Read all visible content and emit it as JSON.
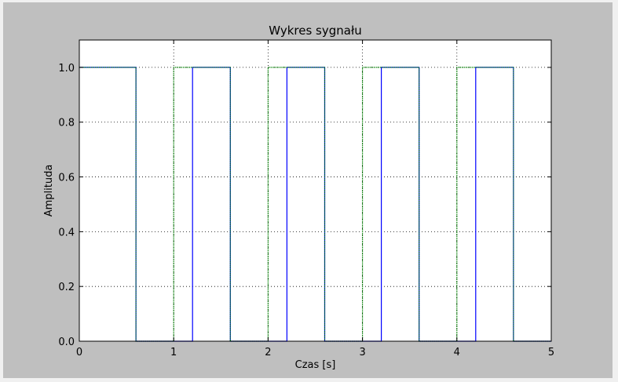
{
  "colors": {
    "figure_bg": "#bfbfbf",
    "axes_bg": "#ffffff",
    "grid": "#000000"
  },
  "chart_data": {
    "type": "line",
    "title": "Wykres sygnału",
    "xlabel": "Czas [s]",
    "ylabel": "Amplituda",
    "xlim": [
      0,
      5
    ],
    "ylim": [
      0,
      1.1
    ],
    "x_ticks": [
      0,
      1,
      2,
      3,
      4,
      5
    ],
    "x_tick_labels": [
      "0",
      "1",
      "2",
      "3",
      "4",
      "5"
    ],
    "y_ticks": [
      0.0,
      0.2,
      0.4,
      0.6,
      0.8,
      1.0
    ],
    "y_tick_labels": [
      "0.0",
      "0.2",
      "0.4",
      "0.6",
      "0.8",
      "1.0"
    ],
    "grid": true,
    "grid_style": "dotted",
    "step": true,
    "series": [
      {
        "color": "#0000ff",
        "x": [
          0,
          0.6,
          0.6,
          1.2,
          1.2,
          1.6,
          1.6,
          2.2,
          2.2,
          2.6,
          2.6,
          3.2,
          3.2,
          3.6,
          3.6,
          4.2,
          4.2,
          4.6,
          4.6,
          5.0
        ],
        "y": [
          1,
          1,
          0,
          0,
          1,
          1,
          0,
          0,
          1,
          1,
          0,
          0,
          1,
          1,
          0,
          0,
          1,
          1,
          0,
          0
        ]
      },
      {
        "color": "#008000",
        "dashed": true,
        "x": [
          0,
          0.6,
          0.6,
          1.0,
          1.0,
          1.6,
          1.6,
          2.0,
          2.0,
          2.6,
          2.6,
          3.0,
          3.0,
          3.6,
          3.6,
          4.0,
          4.0,
          4.6,
          4.6,
          5.0
        ],
        "y": [
          1,
          1,
          0,
          0,
          1,
          1,
          0,
          0,
          1,
          1,
          0,
          0,
          1,
          1,
          0,
          0,
          1,
          1,
          0,
          0
        ]
      }
    ]
  }
}
